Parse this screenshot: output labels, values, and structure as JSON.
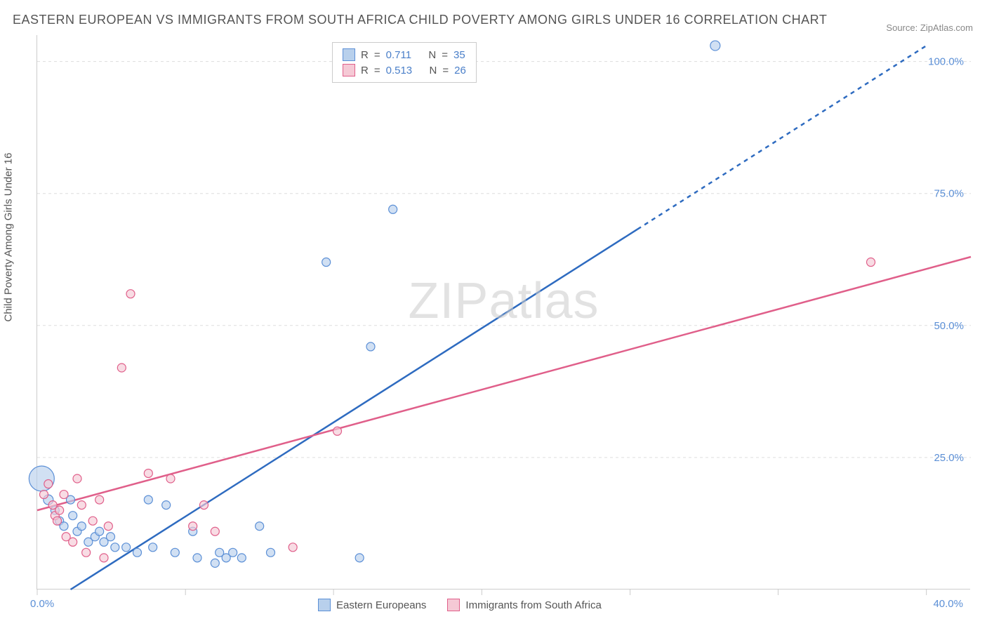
{
  "title": "EASTERN EUROPEAN VS IMMIGRANTS FROM SOUTH AFRICA CHILD POVERTY AMONG GIRLS UNDER 16 CORRELATION CHART",
  "source_label": "Source:",
  "source_value": "ZipAtlas.com",
  "y_axis_label": "Child Poverty Among Girls Under 16",
  "watermark": "ZIPatlas",
  "chart": {
    "type": "scatter",
    "xlim": [
      0,
      42
    ],
    "ylim": [
      0,
      105
    ],
    "x_ticks": [
      0,
      6.67,
      13.33,
      20,
      26.67,
      33.33,
      40
    ],
    "x_tick_labels": {
      "0": "0.0%",
      "40": "40.0%"
    },
    "y_ticks": [
      25,
      50,
      75,
      100
    ],
    "y_tick_labels": [
      "25.0%",
      "50.0%",
      "75.0%",
      "100.0%"
    ],
    "grid_color": "#dddddd",
    "background_color": "#ffffff",
    "series": [
      {
        "id": "eastern_europeans",
        "label": "Eastern Europeans",
        "legend_R": "0.711",
        "legend_N": "35",
        "color_fill": "#b8d0ec",
        "color_stroke": "#5b8fd6",
        "line_color": "#2e6bc0",
        "line_width": 2.5,
        "line_dash_after_x": 27,
        "trend": {
          "x1": 1.5,
          "y1": 0,
          "x2": 40,
          "y2": 103
        },
        "points": [
          {
            "x": 0.2,
            "y": 21,
            "r": 18
          },
          {
            "x": 0.5,
            "y": 17,
            "r": 7
          },
          {
            "x": 0.8,
            "y": 15,
            "r": 6
          },
          {
            "x": 1.0,
            "y": 13,
            "r": 6
          },
          {
            "x": 1.2,
            "y": 12,
            "r": 6
          },
          {
            "x": 1.5,
            "y": 17,
            "r": 6
          },
          {
            "x": 1.8,
            "y": 11,
            "r": 6
          },
          {
            "x": 1.6,
            "y": 14,
            "r": 6
          },
          {
            "x": 2.0,
            "y": 12,
            "r": 6
          },
          {
            "x": 2.3,
            "y": 9,
            "r": 6
          },
          {
            "x": 2.6,
            "y": 10,
            "r": 6
          },
          {
            "x": 2.8,
            "y": 11,
            "r": 6
          },
          {
            "x": 3.0,
            "y": 9,
            "r": 6
          },
          {
            "x": 3.5,
            "y": 8,
            "r": 6
          },
          {
            "x": 3.3,
            "y": 10,
            "r": 6
          },
          {
            "x": 4.0,
            "y": 8,
            "r": 6
          },
          {
            "x": 4.5,
            "y": 7,
            "r": 6
          },
          {
            "x": 5.0,
            "y": 17,
            "r": 6
          },
          {
            "x": 5.2,
            "y": 8,
            "r": 6
          },
          {
            "x": 5.8,
            "y": 16,
            "r": 6
          },
          {
            "x": 6.2,
            "y": 7,
            "r": 6
          },
          {
            "x": 7.0,
            "y": 11,
            "r": 6
          },
          {
            "x": 7.2,
            "y": 6,
            "r": 6
          },
          {
            "x": 8.0,
            "y": 5,
            "r": 6
          },
          {
            "x": 8.2,
            "y": 7,
            "r": 6
          },
          {
            "x": 8.5,
            "y": 6,
            "r": 6
          },
          {
            "x": 8.8,
            "y": 7,
            "r": 6
          },
          {
            "x": 9.2,
            "y": 6,
            "r": 6
          },
          {
            "x": 10.0,
            "y": 12,
            "r": 6
          },
          {
            "x": 10.5,
            "y": 7,
            "r": 6
          },
          {
            "x": 13.0,
            "y": 62,
            "r": 6
          },
          {
            "x": 14.5,
            "y": 6,
            "r": 6
          },
          {
            "x": 15.0,
            "y": 46,
            "r": 6
          },
          {
            "x": 16.0,
            "y": 72,
            "r": 6
          },
          {
            "x": 30.5,
            "y": 103,
            "r": 7
          }
        ]
      },
      {
        "id": "south_africa",
        "label": "Immigrants from South Africa",
        "legend_R": "0.513",
        "legend_N": "26",
        "color_fill": "#f5c9d5",
        "color_stroke": "#e05f8a",
        "line_color": "#e05f8a",
        "line_width": 2.5,
        "trend": {
          "x1": 0,
          "y1": 15,
          "x2": 42,
          "y2": 63
        },
        "points": [
          {
            "x": 0.3,
            "y": 18,
            "r": 6
          },
          {
            "x": 0.5,
            "y": 20,
            "r": 6
          },
          {
            "x": 0.7,
            "y": 16,
            "r": 6
          },
          {
            "x": 0.8,
            "y": 14,
            "r": 6
          },
          {
            "x": 1.0,
            "y": 15,
            "r": 6
          },
          {
            "x": 1.2,
            "y": 18,
            "r": 6
          },
          {
            "x": 0.9,
            "y": 13,
            "r": 6
          },
          {
            "x": 1.3,
            "y": 10,
            "r": 6
          },
          {
            "x": 1.6,
            "y": 9,
            "r": 6
          },
          {
            "x": 1.8,
            "y": 21,
            "r": 6
          },
          {
            "x": 2.0,
            "y": 16,
            "r": 6
          },
          {
            "x": 2.2,
            "y": 7,
            "r": 6
          },
          {
            "x": 2.5,
            "y": 13,
            "r": 6
          },
          {
            "x": 2.8,
            "y": 17,
            "r": 6
          },
          {
            "x": 3.0,
            "y": 6,
            "r": 6
          },
          {
            "x": 3.2,
            "y": 12,
            "r": 6
          },
          {
            "x": 3.8,
            "y": 42,
            "r": 6
          },
          {
            "x": 4.2,
            "y": 56,
            "r": 6
          },
          {
            "x": 5.0,
            "y": 22,
            "r": 6
          },
          {
            "x": 6.0,
            "y": 21,
            "r": 6
          },
          {
            "x": 7.0,
            "y": 12,
            "r": 6
          },
          {
            "x": 7.5,
            "y": 16,
            "r": 6
          },
          {
            "x": 8.0,
            "y": 11,
            "r": 6
          },
          {
            "x": 11.5,
            "y": 8,
            "r": 6
          },
          {
            "x": 13.5,
            "y": 30,
            "r": 6
          },
          {
            "x": 37.5,
            "y": 62,
            "r": 6
          }
        ]
      }
    ]
  },
  "legend_labels": {
    "R": "R",
    "N": "N",
    "eq": "="
  }
}
